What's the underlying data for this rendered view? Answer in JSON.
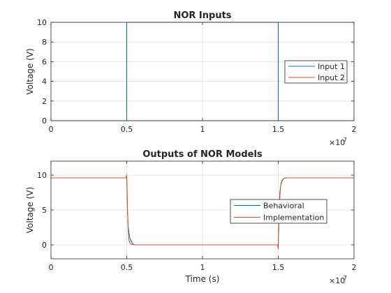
{
  "chart_data": [
    {
      "type": "line",
      "title": "NOR Inputs",
      "xlabel": "",
      "ylabel": "Voltage (V)",
      "xlim": [
        0,
        2e-07
      ],
      "ylim": [
        0,
        10
      ],
      "x_ticks": [
        0,
        0.5,
        1,
        1.5,
        2
      ],
      "x_tick_labels": [
        "0",
        "0.5",
        "1",
        "1.5",
        "2"
      ],
      "x_multiplier": "×10",
      "x_multiplier_exp": "-7",
      "y_ticks": [
        0,
        2,
        4,
        6,
        8,
        10
      ],
      "y_tick_labels": [
        "0",
        "2",
        "4",
        "6",
        "8",
        "10"
      ],
      "grid": true,
      "legend_position": "right",
      "series": [
        {
          "name": "Input 1",
          "color": "#0072bd",
          "x": [
            0,
            5e-08,
            5e-08,
            1.5e-07,
            1.5e-07,
            2e-07
          ],
          "y": [
            0,
            0,
            10,
            10,
            0,
            0
          ]
        },
        {
          "name": "Input 2",
          "color": "#d95319",
          "x": [
            0,
            2e-07
          ],
          "y": [
            0,
            0
          ]
        }
      ]
    },
    {
      "type": "line",
      "title": "Outputs of NOR Models",
      "xlabel": "Time (s)",
      "ylabel": "Voltage (V)",
      "xlim": [
        0,
        2e-07
      ],
      "ylim": [
        -2,
        12
      ],
      "x_ticks": [
        0,
        0.5,
        1,
        1.5,
        2
      ],
      "x_tick_labels": [
        "0",
        "0.5",
        "1",
        "1.5",
        "2"
      ],
      "x_multiplier": "×10",
      "x_multiplier_exp": "-7",
      "y_ticks": [
        0,
        5,
        10
      ],
      "y_tick_labels": [
        "0",
        "5",
        "10"
      ],
      "grid": true,
      "legend_position": "right",
      "series": [
        {
          "name": "Behavioral",
          "color": "#0072bd",
          "x": [
            0,
            5e-08,
            5.02e-08,
            5.05e-08,
            5.1e-08,
            5.2e-08,
            5.35e-08,
            5.5e-08,
            1.5e-07,
            1.502e-07,
            1.505e-07,
            1.51e-07,
            1.52e-07,
            1.535e-07,
            1.55e-07,
            2e-07
          ],
          "y": [
            9.6,
            9.6,
            8.0,
            5.0,
            2.5,
            1.0,
            0.3,
            0,
            0,
            1.0,
            4.5,
            7.5,
            9.0,
            9.5,
            9.6,
            9.6
          ]
        },
        {
          "name": "Implementation",
          "color": "#d95319",
          "x": [
            0,
            4.95e-08,
            5e-08,
            5.02e-08,
            5.05e-08,
            5.1e-08,
            5.15e-08,
            5.25e-08,
            5.5e-08,
            1.495e-07,
            1.5e-07,
            1.503e-07,
            1.507e-07,
            1.515e-07,
            1.525e-07,
            1.54e-07,
            1.56e-07,
            2e-07
          ],
          "y": [
            9.6,
            9.6,
            10.0,
            8.5,
            5.0,
            2.0,
            0.6,
            0.1,
            0,
            0,
            -0.6,
            1.5,
            5.5,
            8.3,
            9.3,
            9.55,
            9.6,
            9.6
          ]
        }
      ]
    }
  ]
}
